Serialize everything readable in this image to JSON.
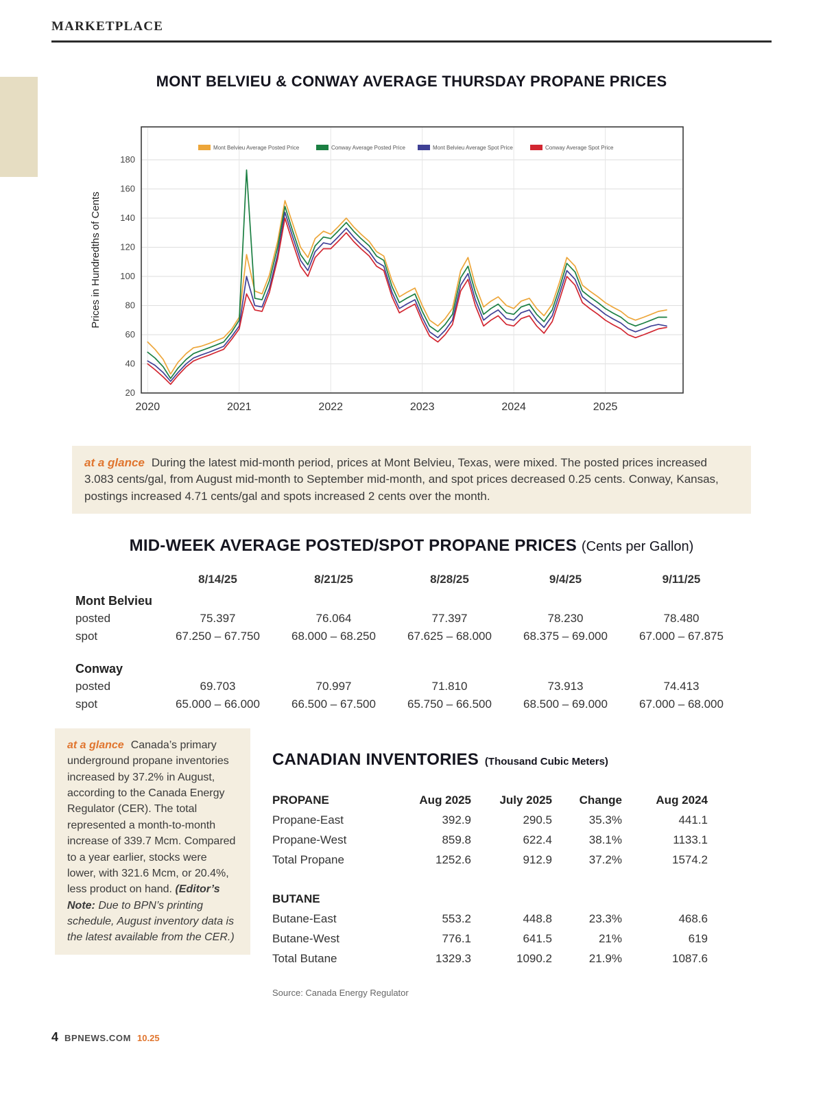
{
  "page": {
    "kicker": "MARKETPLACE",
    "footer": {
      "page_number": "4",
      "site": "BPNEWS.COM",
      "issue": "10.25"
    }
  },
  "chart_data": {
    "type": "line",
    "title": "MONT BELVIEU & CONWAY AVERAGE THURSDAY PROPANE PRICES",
    "xlabel": "",
    "ylabel": "Prices in Hundredths of Cents",
    "ylim": [
      20,
      180
    ],
    "yticks": [
      20,
      40,
      60,
      80,
      100,
      120,
      140,
      160,
      180
    ],
    "xticks": [
      2020,
      2021,
      2022,
      2023,
      2024,
      2025
    ],
    "grid": true,
    "legend_position": "top",
    "x": [
      2020.0,
      2020.08,
      2020.17,
      2020.25,
      2020.33,
      2020.42,
      2020.5,
      2020.58,
      2020.67,
      2020.75,
      2020.83,
      2020.92,
      2021.0,
      2021.08,
      2021.17,
      2021.25,
      2021.33,
      2021.42,
      2021.5,
      2021.58,
      2021.67,
      2021.75,
      2021.83,
      2021.92,
      2022.0,
      2022.08,
      2022.17,
      2022.25,
      2022.33,
      2022.42,
      2022.5,
      2022.58,
      2022.67,
      2022.75,
      2022.83,
      2022.92,
      2023.0,
      2023.08,
      2023.17,
      2023.25,
      2023.33,
      2023.42,
      2023.5,
      2023.58,
      2023.67,
      2023.75,
      2023.83,
      2023.92,
      2024.0,
      2024.08,
      2024.17,
      2024.25,
      2024.33,
      2024.42,
      2024.5,
      2024.58,
      2024.67,
      2024.75,
      2024.83,
      2024.92,
      2025.0,
      2025.08,
      2025.17,
      2025.25,
      2025.33,
      2025.42,
      2025.5,
      2025.58,
      2025.67
    ],
    "series": [
      {
        "name": "Mont Belvieu Average Posted Price",
        "color": "#EDA63A",
        "values": [
          55,
          50,
          43,
          33,
          41,
          47,
          51,
          52,
          54,
          56,
          58,
          64,
          72,
          115,
          90,
          88,
          101,
          124,
          152,
          137,
          120,
          113,
          126,
          131,
          129,
          134,
          140,
          134,
          129,
          124,
          117,
          114,
          97,
          86,
          89,
          92,
          80,
          70,
          66,
          71,
          78,
          104,
          113,
          94,
          79,
          83,
          86,
          80,
          78,
          83,
          85,
          78,
          73,
          81,
          96,
          113,
          107,
          94,
          90,
          86,
          82,
          79,
          76,
          72,
          70,
          72,
          74,
          76,
          77
        ]
      },
      {
        "name": "Conway Average Posted Price",
        "color": "#1B7F42",
        "values": [
          48,
          44,
          38,
          30,
          37,
          43,
          47,
          49,
          51,
          53,
          55,
          62,
          70,
          173,
          85,
          84,
          97,
          120,
          148,
          132,
          115,
          108,
          121,
          127,
          126,
          131,
          137,
          131,
          126,
          121,
          114,
          111,
          93,
          82,
          85,
          88,
          76,
          66,
          62,
          67,
          74,
          99,
          107,
          89,
          74,
          78,
          81,
          75,
          74,
          79,
          81,
          74,
          69,
          77,
          92,
          109,
          103,
          90,
          86,
          82,
          78,
          75,
          72,
          68,
          66,
          68,
          70,
          72,
          72
        ]
      },
      {
        "name": "Mont Belvieu Average Spot Price",
        "color": "#3F4095",
        "values": [
          42,
          39,
          34,
          28,
          34,
          40,
          44,
          46,
          48,
          50,
          52,
          59,
          66,
          100,
          80,
          79,
          92,
          115,
          144,
          128,
          111,
          104,
          117,
          123,
          122,
          127,
          133,
          127,
          122,
          117,
          110,
          107,
          89,
          78,
          81,
          84,
          72,
          62,
          58,
          63,
          70,
          94,
          102,
          84,
          70,
          74,
          77,
          71,
          70,
          75,
          77,
          70,
          65,
          73,
          88,
          104,
          98,
          86,
          82,
          78,
          74,
          71,
          68,
          64,
          62,
          64,
          66,
          67,
          66
        ]
      },
      {
        "name": "Conway Average Spot Price",
        "color": "#D22630",
        "values": [
          40,
          36,
          31,
          26,
          32,
          38,
          42,
          44,
          46,
          48,
          50,
          57,
          64,
          88,
          77,
          76,
          89,
          112,
          140,
          124,
          107,
          100,
          113,
          119,
          119,
          124,
          130,
          124,
          119,
          114,
          107,
          104,
          86,
          75,
          78,
          81,
          69,
          59,
          55,
          60,
          67,
          90,
          98,
          80,
          66,
          70,
          73,
          67,
          66,
          71,
          73,
          66,
          61,
          69,
          84,
          100,
          94,
          82,
          78,
          74,
          70,
          67,
          64,
          60,
          58,
          60,
          62,
          64,
          65
        ]
      }
    ]
  },
  "glance1": {
    "label": "at a glance",
    "text": "During the latest mid-month period, prices at Mont Belvieu, Texas, were mixed. The posted prices increased 3.083 cents/gal, from August mid-month to September mid-month, and spot prices decreased 0.25 cents. Conway, Kansas, postings increased 4.71 cents/gal and spots increased 2 cents over the month."
  },
  "midweek": {
    "title": "MID-WEEK AVERAGE POSTED/SPOT PROPANE PRICES",
    "subtitle": "(Cents per Gallon)",
    "columns": [
      "8/14/25",
      "8/21/25",
      "8/28/25",
      "9/4/25",
      "9/11/25"
    ],
    "groups": [
      {
        "name": "Mont Belvieu",
        "rows": [
          {
            "label": "posted",
            "values": [
              "75.397",
              "76.064",
              "77.397",
              "78.230",
              "78.480"
            ]
          },
          {
            "label": "spot",
            "values": [
              "67.250 – 67.750",
              "68.000 – 68.250",
              "67.625 – 68.000",
              "68.375 – 69.000",
              "67.000 – 67.875"
            ]
          }
        ]
      },
      {
        "name": "Conway",
        "rows": [
          {
            "label": "posted",
            "values": [
              "69.703",
              "70.997",
              "71.810",
              "73.913",
              "74.413"
            ]
          },
          {
            "label": "spot",
            "values": [
              "65.000 – 66.000",
              "66.500 – 67.500",
              "65.750 – 66.500",
              "68.500 – 69.000",
              "67.000 – 68.000"
            ]
          }
        ]
      }
    ]
  },
  "glance2": {
    "label": "at a glance",
    "text": "Canada’s primary underground propane inventories increased by 37.2% in August, according to the Canada Energy Regulator (CER). The total represented a month-to-month increase of 339.7 Mcm. Compared to a year earlier, stocks were lower, with 321.6 Mcm, or 20.4%, less product on hand. ",
    "note_label": "(Editor’s Note:",
    "note_text": " Due to BPN’s printing schedule, August inventory data is the latest available from the CER.)"
  },
  "inventories": {
    "title": "CANADIAN INVENTORIES",
    "subtitle": "(Thousand Cubic Meters)",
    "columns": [
      "Aug 2025",
      "July 2025",
      "Change",
      "Aug 2024"
    ],
    "sections": [
      {
        "name": "PROPANE",
        "rows": [
          {
            "label": "Propane-East",
            "values": [
              "392.9",
              "290.5",
              "35.3%",
              "441.1"
            ]
          },
          {
            "label": "Propane-West",
            "values": [
              "859.8",
              "622.4",
              "38.1%",
              "1133.1"
            ]
          },
          {
            "label": "Total Propane",
            "values": [
              "1252.6",
              "912.9",
              "37.2%",
              "1574.2"
            ]
          }
        ]
      },
      {
        "name": "BUTANE",
        "rows": [
          {
            "label": "Butane-East",
            "values": [
              "553.2",
              "448.8",
              "23.3%",
              "468.6"
            ]
          },
          {
            "label": "Butane-West",
            "values": [
              "776.1",
              "641.5",
              "21%",
              "619"
            ]
          },
          {
            "label": "Total Butane",
            "values": [
              "1329.3",
              "1090.2",
              "21.9%",
              "1087.6"
            ]
          }
        ]
      }
    ],
    "source": "Source: Canada Energy Regulator"
  }
}
